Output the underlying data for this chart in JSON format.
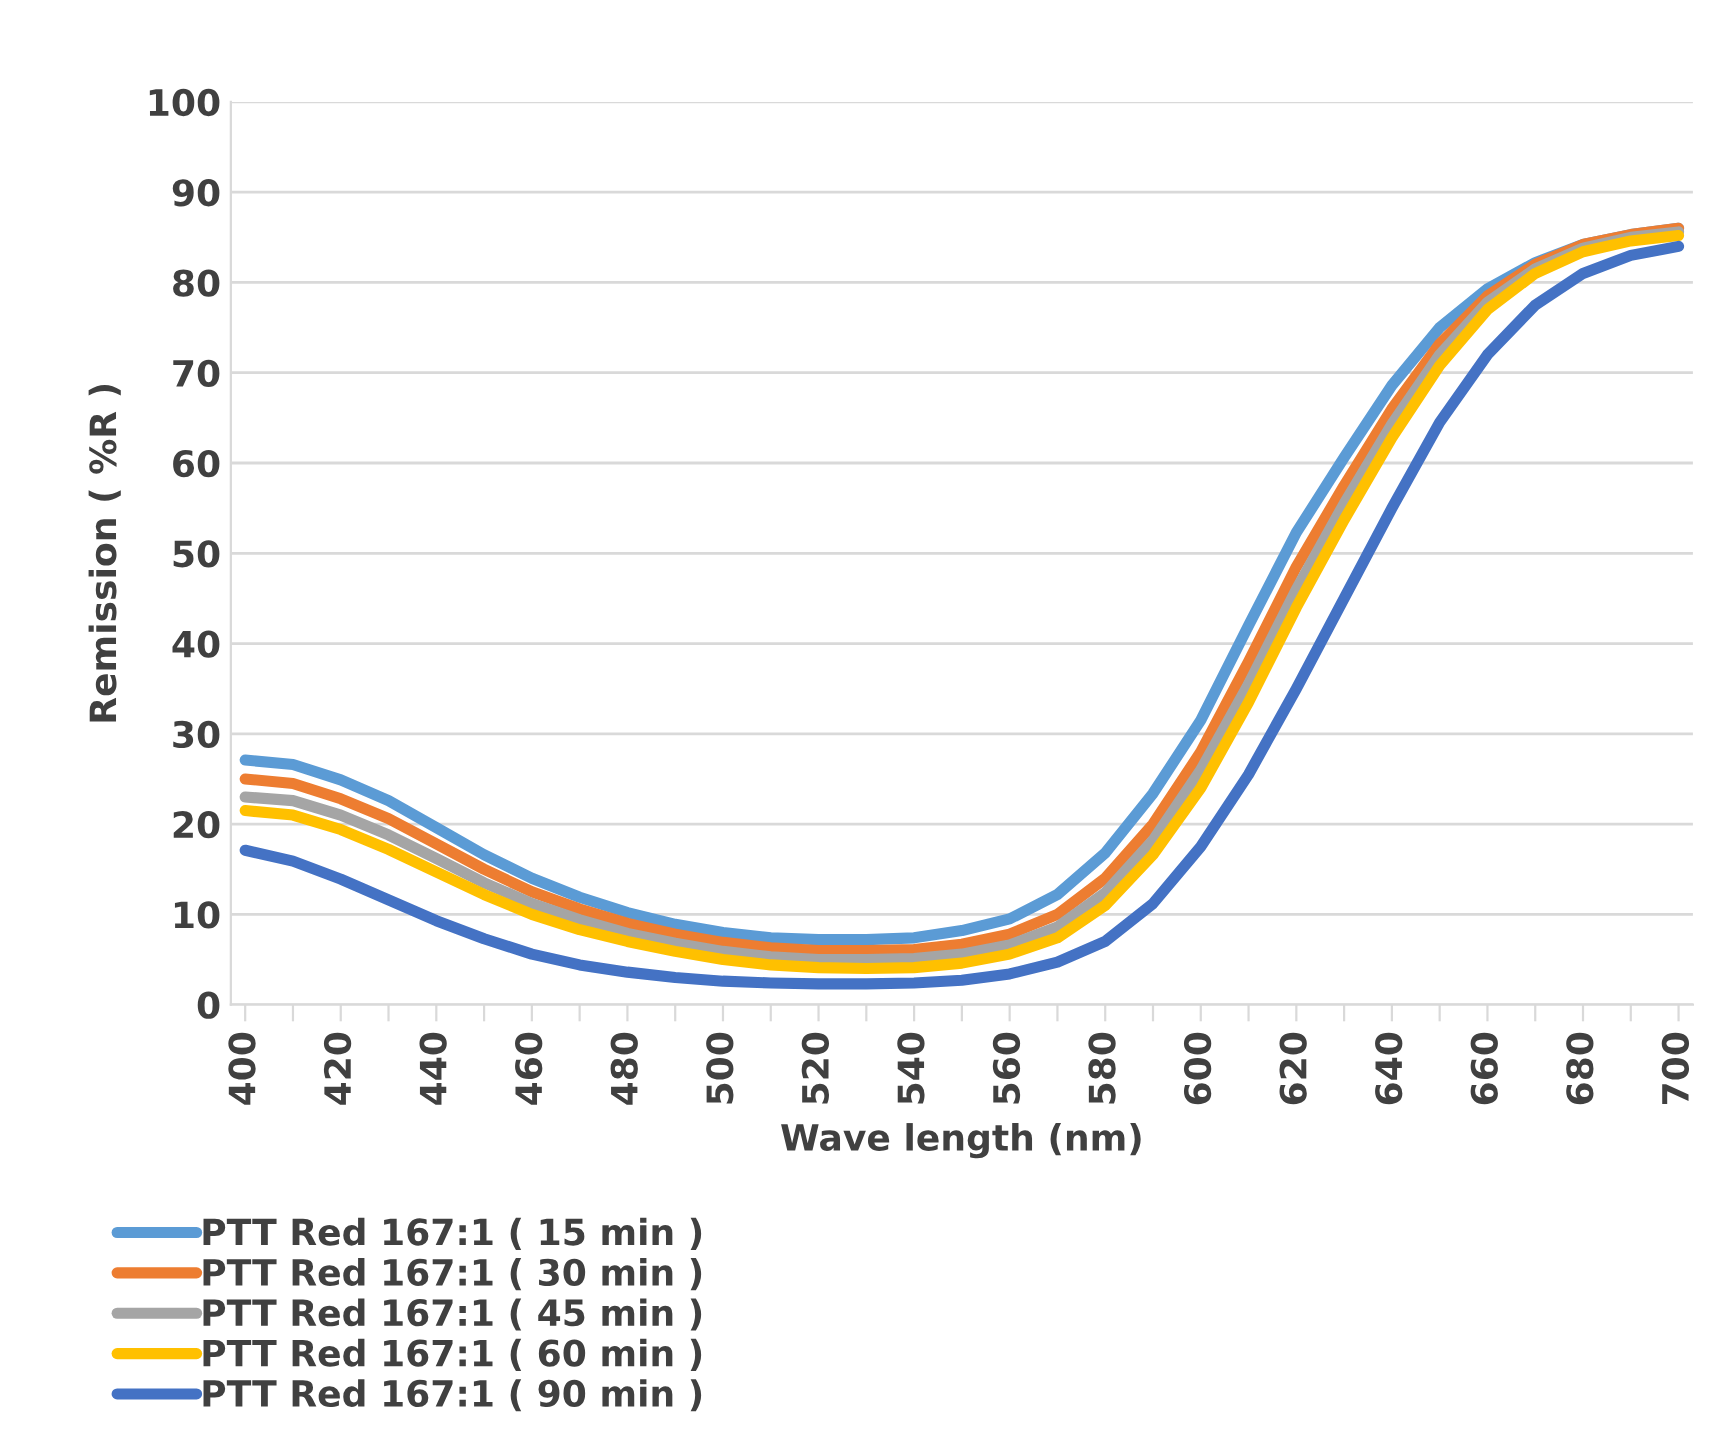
{
  "chart_data": {
    "type": "line",
    "xlabel": "Wave length (nm)",
    "ylabel": "Remission ( %R )",
    "x": [
      400,
      410,
      420,
      430,
      440,
      450,
      460,
      470,
      480,
      490,
      500,
      510,
      520,
      530,
      540,
      550,
      560,
      570,
      580,
      590,
      600,
      610,
      620,
      630,
      640,
      650,
      660,
      670,
      680,
      690,
      700
    ],
    "xlim": [
      397,
      703
    ],
    "xticks": [
      400,
      {
        "value": 410,
        "label": null
      },
      420,
      {
        "value": 430,
        "label": null
      },
      440,
      {
        "value": 450,
        "label": null
      },
      460,
      {
        "value": 470,
        "label": null
      },
      480,
      {
        "value": 490,
        "label": null
      },
      500,
      {
        "value": 510,
        "label": null
      },
      520,
      {
        "value": 530,
        "label": null
      },
      540,
      {
        "value": 550,
        "label": null
      },
      560,
      {
        "value": 570,
        "label": null
      },
      580,
      {
        "value": 590,
        "label": null
      },
      600,
      {
        "value": 610,
        "label": null
      },
      620,
      {
        "value": 630,
        "label": null
      },
      640,
      {
        "value": 650,
        "label": null
      },
      660,
      {
        "value": 670,
        "label": null
      },
      680,
      {
        "value": 690,
        "label": null
      },
      700
    ],
    "ylim": [
      0,
      100
    ],
    "yticks": [
      0,
      10,
      20,
      30,
      40,
      50,
      60,
      70,
      80,
      90,
      100
    ],
    "grid": "y",
    "legend": "bottom left",
    "marker": "none",
    "line_style": "solid",
    "series": [
      {
        "name": "PTT Red 167:1 ( 15 min )",
        "color": "#5b9bd5",
        "values": [
          27.1,
          26.6,
          24.9,
          22.6,
          19.6,
          16.6,
          14.0,
          11.9,
          10.2,
          8.9,
          8.0,
          7.4,
          7.2,
          7.2,
          7.4,
          8.2,
          9.5,
          12.2,
          16.8,
          23.4,
          31.5,
          42.0,
          52.3,
          60.6,
          68.6,
          75.0,
          79.3,
          82.2,
          84.2,
          85.3,
          86.0
        ]
      },
      {
        "name": "PTT Red 167:1 ( 30 min )",
        "color": "#ed7d31",
        "values": [
          25.0,
          24.5,
          22.8,
          20.6,
          17.8,
          15.0,
          12.5,
          10.6,
          9.0,
          7.8,
          6.9,
          6.3,
          6.0,
          6.0,
          6.1,
          6.7,
          7.8,
          10.0,
          14.0,
          20.0,
          28.0,
          38.0,
          48.5,
          57.5,
          66.0,
          73.2,
          78.5,
          82.0,
          84.2,
          85.3,
          86.0
        ]
      },
      {
        "name": "PTT Red 167:1 ( 45 min )",
        "color": "#a5a5a5",
        "values": [
          23.0,
          22.6,
          21.0,
          18.8,
          16.2,
          13.5,
          11.2,
          9.4,
          7.9,
          6.8,
          5.9,
          5.3,
          5.0,
          5.0,
          5.1,
          5.6,
          6.6,
          8.6,
          12.4,
          18.2,
          26.0,
          35.5,
          46.0,
          55.5,
          64.3,
          72.0,
          77.8,
          81.5,
          83.8,
          85.0,
          85.6
        ]
      },
      {
        "name": "PTT Red 167:1 ( 60 min )",
        "color": "#ffc000",
        "values": [
          21.5,
          21.0,
          19.4,
          17.2,
          14.7,
          12.2,
          10.0,
          8.3,
          7.0,
          5.9,
          5.0,
          4.4,
          4.1,
          4.0,
          4.1,
          4.6,
          5.6,
          7.4,
          11.0,
          16.6,
          24.0,
          33.5,
          44.0,
          53.7,
          62.8,
          70.8,
          77.0,
          81.0,
          83.4,
          84.6,
          85.2
        ]
      },
      {
        "name": "PTT Red 167:1 ( 90 min )",
        "color": "#4472c4",
        "values": [
          17.1,
          15.9,
          13.9,
          11.6,
          9.3,
          7.3,
          5.6,
          4.4,
          3.6,
          3.0,
          2.6,
          2.4,
          2.3,
          2.3,
          2.4,
          2.7,
          3.4,
          4.7,
          7.0,
          11.2,
          17.5,
          25.5,
          35.0,
          45.0,
          55.0,
          64.5,
          72.0,
          77.5,
          81.0,
          83.0,
          84.0
        ]
      }
    ]
  }
}
